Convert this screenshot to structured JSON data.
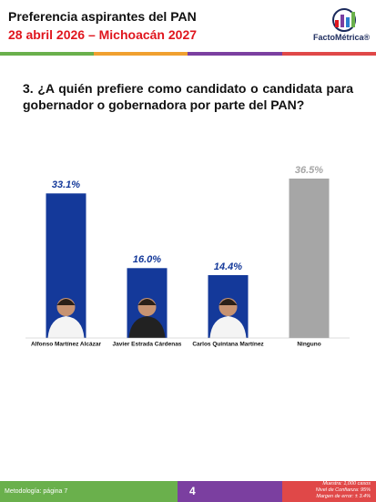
{
  "header": {
    "title": "Preferencia aspirantes del PAN",
    "subtitle": "28 abril 2026 – Michoacán 2027",
    "logo": "FactoMétrica®"
  },
  "question": "3. ¿A quién prefiere como candidato o candidata para gobernador o gobernadora por parte del PAN?",
  "chart_data": {
    "type": "bar",
    "categories": [
      "Alfonso Martínez Alcázar",
      "Javier Estrada Cárdenas",
      "Carlos Quintana Martínez",
      "Ninguno"
    ],
    "values": [
      33.1,
      16.0,
      14.4,
      36.5
    ],
    "value_labels": [
      "33.1%",
      "16.0%",
      "14.4%",
      "36.5%"
    ],
    "colors": [
      "#14399a",
      "#14399a",
      "#14399a",
      "#a6a6a6"
    ]
  },
  "footer": {
    "methodology": "Metodología: página 7",
    "page": "4",
    "notes": [
      "Muestra: 1,000 casos",
      "Nivel de Confianza: 95%",
      "Margen de error: ± 3.4%"
    ]
  }
}
